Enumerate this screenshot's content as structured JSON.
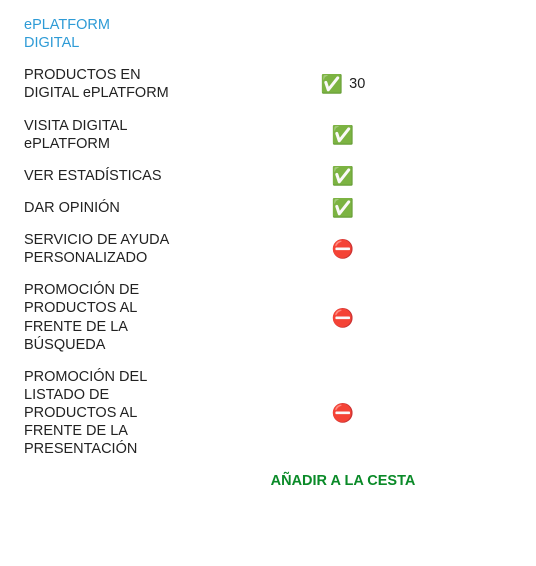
{
  "colors": {
    "header": "#2e9bd6",
    "text": "#222222",
    "cta": "#0a8a28",
    "background": "#ffffff"
  },
  "typography": {
    "font_family": "Verdana, Geneva, sans-serif",
    "label_fontsize": 14.5,
    "header_fontsize": 14.5,
    "cta_fontsize": 14.5,
    "cta_fontweight": 700
  },
  "icons": {
    "yes": "✅",
    "no": "⛔"
  },
  "plan": {
    "header": "ePLATFORM DIGITAL",
    "features": [
      {
        "label": "PRODUCTOS EN DIGITAL ePLATFORM",
        "status": "yes",
        "value": "30"
      },
      {
        "label": "VISITA DIGITAL ePLATFORM",
        "status": "yes",
        "value": ""
      },
      {
        "label": "VER ESTADÍSTICAS",
        "status": "yes",
        "value": ""
      },
      {
        "label": "DAR OPINIÓN",
        "status": "yes",
        "value": ""
      },
      {
        "label": "SERVICIO DE AYUDA PERSONALIZADO",
        "status": "no",
        "value": ""
      },
      {
        "label": "PROMOCIÓN DE PRODUCTOS AL FRENTE DE LA BÚSQUEDA",
        "status": "no",
        "value": ""
      },
      {
        "label": "PROMOCIÓN DEL LISTADO DE PRODUCTOS AL FRENTE DE LA PRESENTACIÓN",
        "status": "no",
        "value": ""
      }
    ],
    "cta_label": "AÑADIR A LA CESTA"
  }
}
